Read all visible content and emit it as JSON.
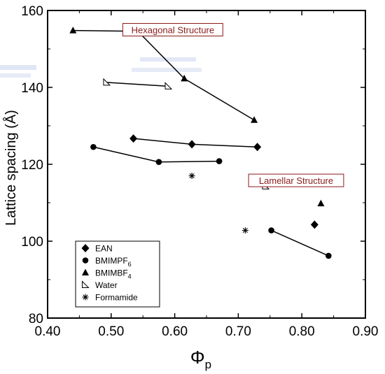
{
  "chart_data": {
    "type": "scatter",
    "xlabel": "Φ",
    "xlabel_sub": "p",
    "ylabel": "Lattice spacing (Å)",
    "xlim": [
      0.4,
      0.9
    ],
    "ylim": [
      80,
      160
    ],
    "xticks": [
      "0.40",
      "0.50",
      "0.60",
      "0.70",
      "0.80",
      "0.90"
    ],
    "yticks": [
      "80",
      "100",
      "120",
      "140",
      "160"
    ],
    "grid": false,
    "legend_position": "bottom-left",
    "series": [
      {
        "name": "EAN",
        "marker": "diamond",
        "connected_x": [
          0.535,
          0.627,
          0.73
        ],
        "connected_y": [
          126.7,
          125.2,
          124.5
        ],
        "extra_x": [
          0.82
        ],
        "extra_y": [
          104.3
        ]
      },
      {
        "name": "BMIMPF6",
        "name_main": "BMIMPF",
        "name_sub": "6",
        "marker": "circle",
        "connected_x": [
          0.472,
          0.575,
          0.67
        ],
        "connected_y": [
          124.5,
          120.6,
          120.8
        ],
        "connected2_x": [
          0.752,
          0.842
        ],
        "connected2_y": [
          102.8,
          96.2
        ]
      },
      {
        "name": "BMIMBF4",
        "name_main": "BMIMBF",
        "name_sub": "4",
        "marker": "triangle",
        "connected_x": [
          0.44,
          0.542,
          0.615,
          0.725
        ],
        "connected_y": [
          154.8,
          154.6,
          142.3,
          131.5
        ],
        "extra_x": [
          0.83
        ],
        "extra_y": [
          109.8
        ]
      },
      {
        "name": "Water",
        "marker": "half-triangle",
        "connected_x": [
          0.493,
          0.59
        ],
        "connected_y": [
          141.3,
          140.3
        ],
        "extra_x": [
          0.743
        ],
        "extra_y": [
          114.3
        ]
      },
      {
        "name": "Formamide",
        "marker": "asterisk",
        "extra_x": [
          0.627,
          0.711
        ],
        "extra_y": [
          117.0,
          102.8
        ]
      }
    ],
    "annotations": [
      {
        "text": "Hexagonal Structure",
        "x": 0.597,
        "y": 155.0
      },
      {
        "text": "Lamellar Structure",
        "x": 0.791,
        "y": 115.8
      }
    ],
    "colors": {
      "annotation": "#8b1a1a",
      "marker": "#000000"
    }
  }
}
